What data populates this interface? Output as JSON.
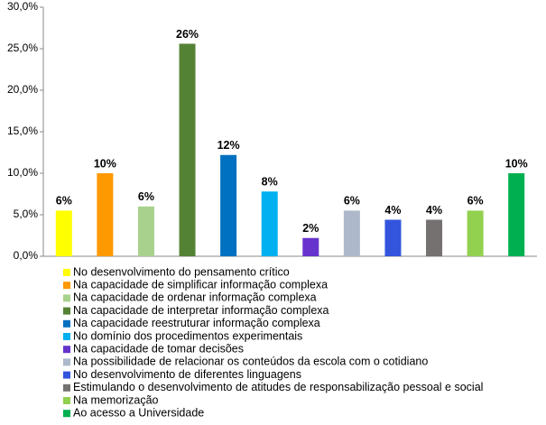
{
  "chart_data": {
    "type": "bar",
    "ylim": [
      0,
      30
    ],
    "yticks": [
      {
        "value": 0,
        "label": "0,0%"
      },
      {
        "value": 5,
        "label": "5,0%"
      },
      {
        "value": 10,
        "label": "10,0%"
      },
      {
        "value": 15,
        "label": "15,0%"
      },
      {
        "value": 20,
        "label": "20,0%"
      },
      {
        "value": 25,
        "label": "25,0%"
      },
      {
        "value": 30,
        "label": "30,0%"
      }
    ],
    "grid": false,
    "legend": "bottom",
    "series": [
      {
        "name": "No desenvolvimento do pensamento crítico",
        "color": "#ffff00",
        "values": [
          5.5
        ],
        "value_labels": [
          "6%"
        ]
      },
      {
        "name": "Na capacidade de simplificar informação complexa",
        "color": "#ff9900",
        "values": [
          10.0
        ],
        "value_labels": [
          "10%"
        ]
      },
      {
        "name": "Na capacidade de ordenar informação complexa",
        "color": "#a9d18e",
        "values": [
          6.0
        ],
        "value_labels": [
          "6%"
        ]
      },
      {
        "name": "Na capacidade de interpretar informação complexa",
        "color": "#548235",
        "values": [
          25.6
        ],
        "value_labels": [
          "26%"
        ]
      },
      {
        "name": "Na capacidade reestruturar informação complexa",
        "color": "#0070c0",
        "values": [
          12.2
        ],
        "value_labels": [
          "12%"
        ]
      },
      {
        "name": "No domínio dos procedimentos experimentais",
        "color": "#00b0f0",
        "values": [
          7.8
        ],
        "value_labels": [
          "8%"
        ]
      },
      {
        "name": "Na capacidade de tomar decisões",
        "color": "#6633cc",
        "values": [
          2.2
        ],
        "value_labels": [
          "2%"
        ]
      },
      {
        "name": "Na possibilidade de relacionar os conteúdos da escola com o cotidiano",
        "color": "#adb9ca",
        "values": [
          5.5
        ],
        "value_labels": [
          "6%"
        ]
      },
      {
        "name": "No desenvolvimento de diferentes linguagens",
        "color": "#3355dd",
        "values": [
          4.4
        ],
        "value_labels": [
          "4%"
        ]
      },
      {
        "name": "Estimulando o desenvolvimento de atitudes de responsabilização  pessoal e social",
        "color": "#767171",
        "values": [
          4.4
        ],
        "value_labels": [
          "4%"
        ]
      },
      {
        "name": "Na memorização",
        "color": "#92d050",
        "values": [
          5.5
        ],
        "value_labels": [
          "6%"
        ]
      },
      {
        "name": "Ao acesso a Universidade",
        "color": "#00b050",
        "values": [
          10.0
        ],
        "value_labels": [
          "10%"
        ]
      }
    ]
  }
}
